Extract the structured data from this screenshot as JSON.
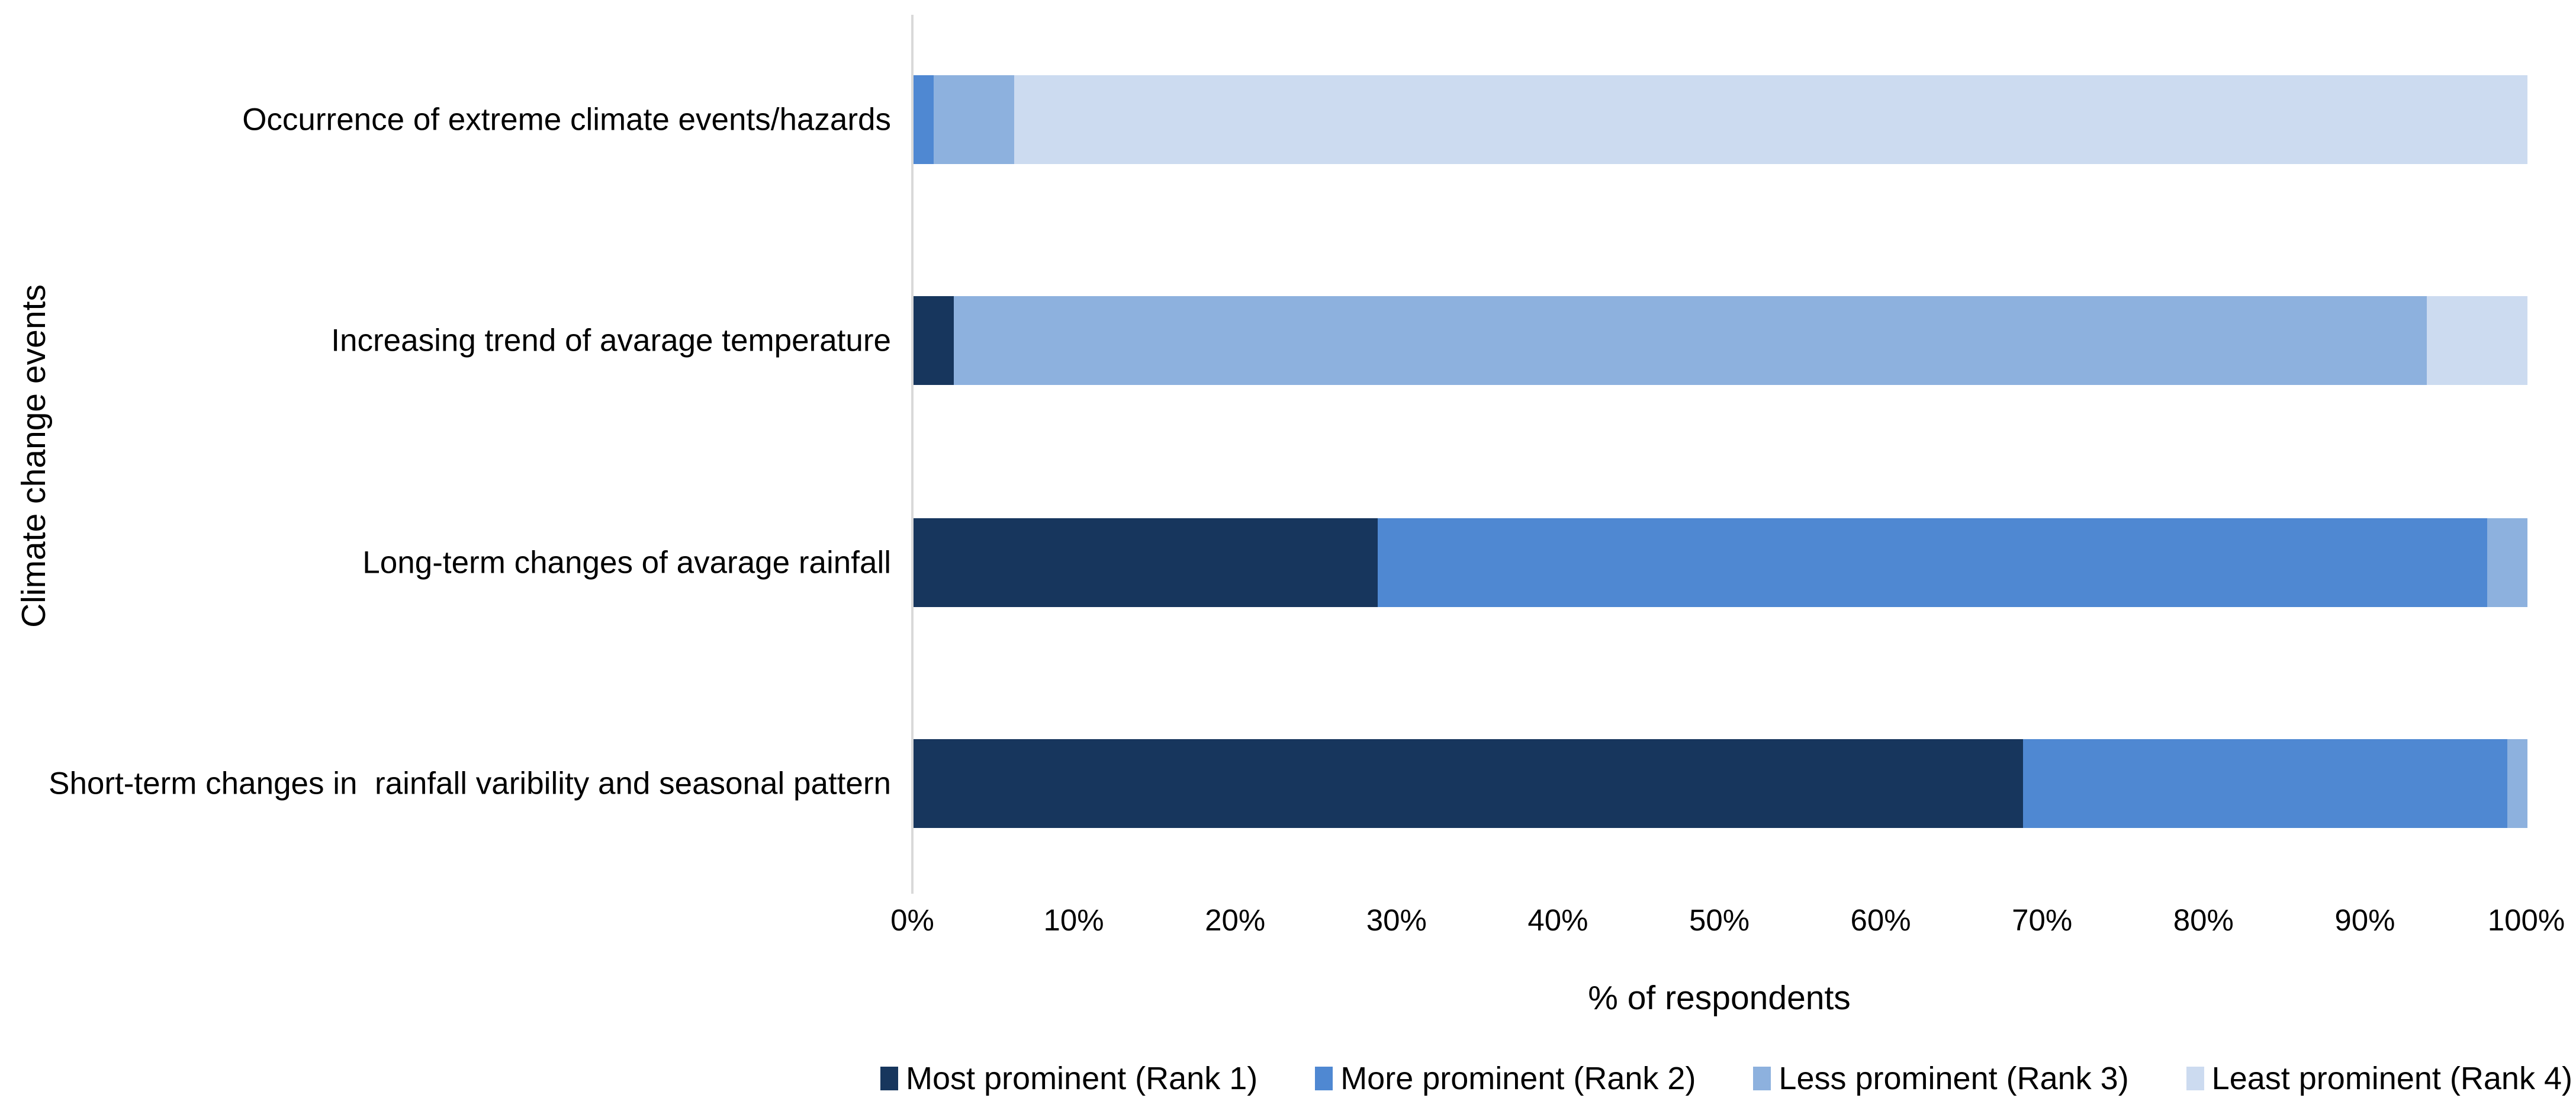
{
  "chart_data": {
    "type": "bar",
    "orientation": "horizontal",
    "stacked": true,
    "grid": false,
    "legend_position": "bottom",
    "xlabel": "% of respondents",
    "ylabel": "Climate change events",
    "xlim": [
      0,
      100
    ],
    "x_ticks": [
      "0%",
      "10%",
      "20%",
      "30%",
      "40%",
      "50%",
      "60%",
      "70%",
      "80%",
      "90%",
      "100%"
    ],
    "categories": [
      "Occurrence of extreme climate events/hazards",
      "Increasing trend of avarage temperature",
      "Long-term changes of avarage rainfall",
      "Short-term changes in  rainfall varibility and seasonal pattern"
    ],
    "series": [
      {
        "name": "Most prominent (Rank 1)",
        "color": "#17365d",
        "values": [
          0,
          2.5,
          28.75,
          68.75
        ]
      },
      {
        "name": "More prominent (Rank 2)",
        "color": "#4f88d2",
        "values": [
          1.25,
          0,
          68.75,
          30
        ]
      },
      {
        "name": "Less prominent (Rank 3)",
        "color": "#8db1de",
        "values": [
          5,
          91.25,
          2.5,
          1.25
        ]
      },
      {
        "name": "Least prominent (Rank 4)",
        "color": "#ccdbf0",
        "values": [
          93.75,
          6.25,
          0,
          0
        ]
      }
    ]
  },
  "axes": {
    "x_title": "% of respondents",
    "y_title": "Climate change events"
  },
  "style": {
    "axis_line_color": "#d9d9d9",
    "background": "#ffffff",
    "text_color": "#000000"
  }
}
